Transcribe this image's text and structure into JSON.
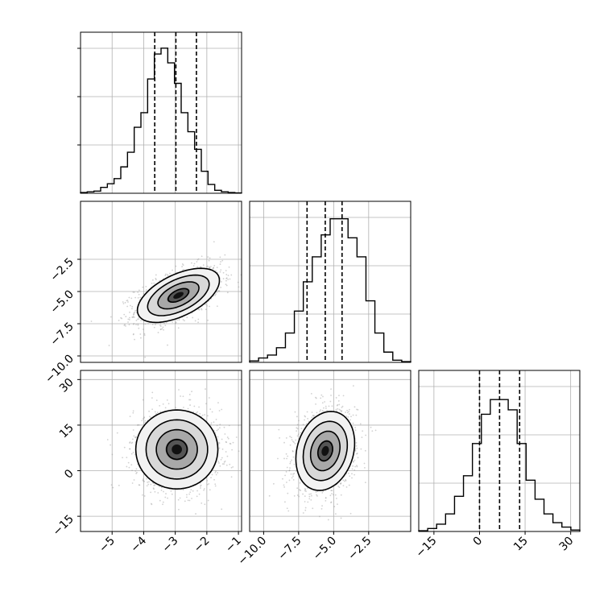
{
  "chart_data": {
    "type": "corner",
    "parameters": [
      {
        "x_range": [
          -6.0,
          -0.9
        ],
        "y_range": [
          -10.5,
          2.0
        ],
        "x_ticks": [
          -5,
          -4,
          -3,
          -2,
          -1
        ],
        "x_tick_labels": [
          "−5",
          "−4",
          "−3",
          "−2",
          "−1"
        ],
        "y_ticks": [
          -10.0,
          -7.5,
          -5.0,
          -2.5
        ],
        "y_tick_labels": [
          "−10.0",
          "−7.5",
          "−5.0",
          "−2.5"
        ],
        "quantiles": [
          -3.65,
          -2.98,
          -2.33
        ],
        "histogram": [
          0.005,
          0.01,
          0.015,
          0.04,
          0.065,
          0.1,
          0.18,
          0.28,
          0.45,
          0.55,
          0.78,
          0.95,
          0.99,
          0.89,
          0.75,
          0.55,
          0.42,
          0.3,
          0.15,
          0.06,
          0.02,
          0.01,
          0.005,
          0.002
        ]
      },
      {
        "x_range": [
          -11.0,
          0.5
        ],
        "y_range": [
          -20,
          33
        ],
        "x_ticks": [
          -10.0,
          -7.5,
          -5.0,
          -2.5
        ],
        "x_tick_labels": [
          "−10.0",
          "−7.5",
          "−5.0",
          "−2.5"
        ],
        "y_ticks": [
          -15,
          0,
          15,
          30
        ],
        "y_tick_labels": [
          "−15",
          "0",
          "15",
          "30"
        ],
        "quantiles": [
          -6.9,
          -5.6,
          -4.4
        ],
        "histogram": [
          0.01,
          0.03,
          0.05,
          0.1,
          0.2,
          0.35,
          0.55,
          0.72,
          0.87,
          0.98,
          0.98,
          0.85,
          0.72,
          0.42,
          0.2,
          0.07,
          0.015,
          0.005
        ]
      },
      {
        "x_range": [
          -20,
          33
        ],
        "x_ticks": [
          -15,
          0,
          15,
          30
        ],
        "x_tick_labels": [
          "−15",
          "0",
          "15",
          "30"
        ],
        "quantiles": [
          0.0,
          6.6,
          13.2
        ],
        "histogram": [
          0.005,
          0.02,
          0.05,
          0.12,
          0.24,
          0.38,
          0.6,
          0.8,
          0.9,
          0.9,
          0.83,
          0.6,
          0.35,
          0.22,
          0.12,
          0.06,
          0.03,
          0.01
        ]
      }
    ],
    "correlations": {
      "1_0": {
        "x_center": -2.9,
        "x_sigma": 0.65,
        "y_center": -5.3,
        "y_sigma": 1.05,
        "rho": 0.55
      },
      "2_0": {
        "x_center": -2.95,
        "x_sigma": 0.65,
        "y_center": 7.0,
        "y_sigma": 6.5,
        "rho": 0.0
      },
      "2_1": {
        "x_center": -5.6,
        "x_sigma": 1.05,
        "y_center": 6.5,
        "y_sigma": 6.5,
        "rho": 0.2
      }
    }
  }
}
